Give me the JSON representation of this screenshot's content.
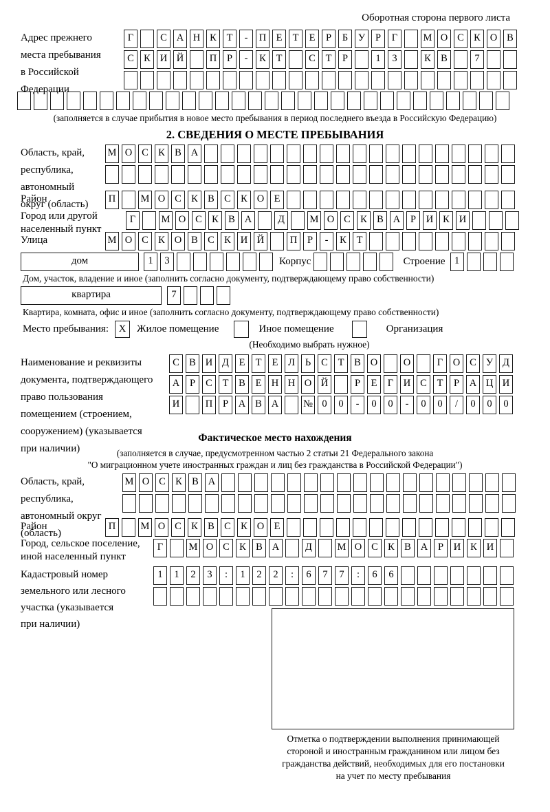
{
  "header": {
    "side_note": "Оборотная сторона первого листа"
  },
  "prev_address": {
    "label": "Адрес прежнего\nместа пребывания\nв Российской\nФедерации",
    "rows": [
      [
        "Г",
        "",
        "С",
        "А",
        "Н",
        "К",
        "Т",
        "-",
        "П",
        "Е",
        "Т",
        "Е",
        "Р",
        "Б",
        "У",
        "Р",
        "Г",
        "",
        "М",
        "О",
        "С",
        "К",
        "О",
        "В"
      ],
      [
        "С",
        "К",
        "И",
        "Й",
        "",
        "П",
        "Р",
        "-",
        "К",
        "Т",
        "",
        "С",
        "Т",
        "Р",
        "",
        "1",
        "3",
        "",
        "К",
        "В",
        "",
        "7",
        "",
        ""
      ],
      [
        "",
        "",
        "",
        "",
        "",
        "",
        "",
        "",
        "",
        "",
        "",
        "",
        "",
        "",
        "",
        "",
        "",
        "",
        "",
        "",
        "",
        "",
        "",
        ""
      ],
      [
        "",
        "",
        "",
        "",
        "",
        "",
        "",
        "",
        "",
        "",
        "",
        "",
        "",
        "",
        "",
        "",
        "",
        "",
        "",
        "",
        "",
        "",
        "",
        "",
        "",
        "",
        "",
        "",
        "",
        ""
      ]
    ],
    "note": "(заполняется в случае прибытия в новое место пребывания в период последнего въезда в Российскую Федерацию)"
  },
  "section2": {
    "title": "2. СВЕДЕНИЯ О МЕСТЕ ПРЕБЫВАНИЯ"
  },
  "stay": {
    "region": {
      "label": "Область, край,\nреспублика,\nавтономный\nокруг (область)",
      "rows": [
        [
          "М",
          "О",
          "С",
          "К",
          "В",
          "А",
          "",
          "",
          "",
          "",
          "",
          "",
          "",
          "",
          "",
          "",
          "",
          "",
          "",
          "",
          "",
          "",
          "",
          "",
          ""
        ],
        [
          "",
          "",
          "",
          "",
          "",
          "",
          "",
          "",
          "",
          "",
          "",
          "",
          "",
          "",
          "",
          "",
          "",
          "",
          "",
          "",
          "",
          "",
          "",
          "",
          ""
        ]
      ]
    },
    "district": {
      "label": "Район",
      "cells": [
        "П",
        "",
        "М",
        "О",
        "С",
        "К",
        "В",
        "С",
        "К",
        "О",
        "Е",
        "",
        "",
        "",
        "",
        "",
        "",
        "",
        "",
        "",
        "",
        "",
        "",
        "",
        ""
      ]
    },
    "city": {
      "label": "Город или другой\nнаселенный пункт",
      "cells": [
        "Г",
        "",
        "М",
        "О",
        "С",
        "К",
        "В",
        "А",
        "",
        "Д",
        "",
        "М",
        "О",
        "С",
        "К",
        "В",
        "А",
        "Р",
        "И",
        "К",
        "И",
        "",
        "",
        ""
      ]
    },
    "street": {
      "label": "Улица",
      "cells": [
        "М",
        "О",
        "С",
        "К",
        "О",
        "В",
        "С",
        "К",
        "И",
        "Й",
        "",
        "П",
        "Р",
        "-",
        "К",
        "Т",
        "",
        "",
        "",
        "",
        "",
        "",
        "",
        "",
        ""
      ]
    },
    "house": {
      "label": "дом",
      "cells": [
        "1",
        "3",
        "",
        "",
        "",
        "",
        "",
        ""
      ]
    },
    "korpus": {
      "label": "Корпус",
      "cells": [
        "",
        "",
        "",
        "",
        ""
      ]
    },
    "stroenie": {
      "label": "Строение",
      "cells": [
        "1",
        "",
        "",
        ""
      ]
    },
    "house_note": "Дом, участок, владение и иное (заполнить согласно документу, подтверждающему право собственности)",
    "apartment": {
      "label": "квартира",
      "cells": [
        "7",
        "",
        "",
        ""
      ]
    },
    "apartment_note": "Квартира, комната, офис и иное (заполнить согласно документу, подтверждающему право собственности)",
    "type": {
      "label": "Место пребывания:",
      "residential_mark": "X",
      "residential_label": "Жилое помещение",
      "other_mark": "",
      "other_label": "Иное помещение",
      "org_mark": "",
      "org_label": "Организация",
      "hint": "(Необходимо выбрать нужное)"
    },
    "document": {
      "label": "Наименование и реквизиты\nдокумента, подтверждающего\nправо пользования\nпомещением (строением,\nсооружением) (указывается\nпри наличии)",
      "rows": [
        [
          "С",
          "В",
          "И",
          "Д",
          "Е",
          "Т",
          "Е",
          "Л",
          "Ь",
          "С",
          "Т",
          "В",
          "О",
          "",
          "О",
          "",
          "Г",
          "О",
          "С",
          "У",
          "Д"
        ],
        [
          "А",
          "Р",
          "С",
          "Т",
          "В",
          "Е",
          "Н",
          "Н",
          "О",
          "Й",
          "",
          "Р",
          "Е",
          "Г",
          "И",
          "С",
          "Т",
          "Р",
          "А",
          "Ц",
          "И"
        ],
        [
          "И",
          "",
          "П",
          "Р",
          "А",
          "В",
          "А",
          "",
          "№",
          "0",
          "0",
          "-",
          "0",
          "0",
          "-",
          "0",
          "0",
          "/",
          "0",
          "0",
          "0"
        ]
      ]
    }
  },
  "actual": {
    "title": "Фактическое место нахождения",
    "note": "(заполняется в случае, предусмотренном частью 2 статьи 21 Федерального закона\n\"О миграционном учете иностранных граждан и лиц без гражданства в Российской Федерации\")",
    "region": {
      "label": "Область, край,\nреспублика,\nавтономный округ\n(область)",
      "rows": [
        [
          "М",
          "О",
          "С",
          "К",
          "В",
          "А",
          "",
          "",
          "",
          "",
          "",
          "",
          "",
          "",
          "",
          "",
          "",
          "",
          "",
          "",
          "",
          "",
          "",
          ""
        ],
        [
          "",
          "",
          "",
          "",
          "",
          "",
          "",
          "",
          "",
          "",
          "",
          "",
          "",
          "",
          "",
          "",
          "",
          "",
          "",
          "",
          "",
          "",
          "",
          ""
        ]
      ]
    },
    "district": {
      "label": "Район",
      "cells": [
        "П",
        "",
        "М",
        "О",
        "С",
        "К",
        "В",
        "С",
        "К",
        "О",
        "Е",
        "",
        "",
        "",
        "",
        "",
        "",
        "",
        "",
        "",
        "",
        "",
        "",
        "",
        ""
      ]
    },
    "city": {
      "label": "Город, сельское поселение,\nиной населенный пункт",
      "cells": [
        "Г",
        "",
        "М",
        "О",
        "С",
        "К",
        "В",
        "А",
        "",
        "Д",
        "",
        "М",
        "О",
        "С",
        "К",
        "В",
        "А",
        "Р",
        "И",
        "К",
        "И",
        ""
      ]
    },
    "cadastre": {
      "label": "Кадастровый номер\nземельного или лесного\nучастка (указывается\nпри наличии)",
      "rows": [
        [
          "1",
          "1",
          "2",
          "3",
          ":",
          "1",
          "2",
          "2",
          ":",
          "6",
          "7",
          "7",
          ":",
          "6",
          "6",
          "",
          "",
          "",
          "",
          "",
          "",
          ""
        ],
        [
          "",
          "",
          "",
          "",
          "",
          "",
          "",
          "",
          "",
          "",
          "",
          "",
          "",
          "",
          "",
          "",
          "",
          "",
          "",
          "",
          "",
          ""
        ]
      ]
    },
    "stamp_caption": "Отметка о подтверждении выполнения принимающей\nстороной и иностранным гражданином или лицом без\nгражданства действий, необходимых для его постановки\nна учет по месту пребывания"
  }
}
